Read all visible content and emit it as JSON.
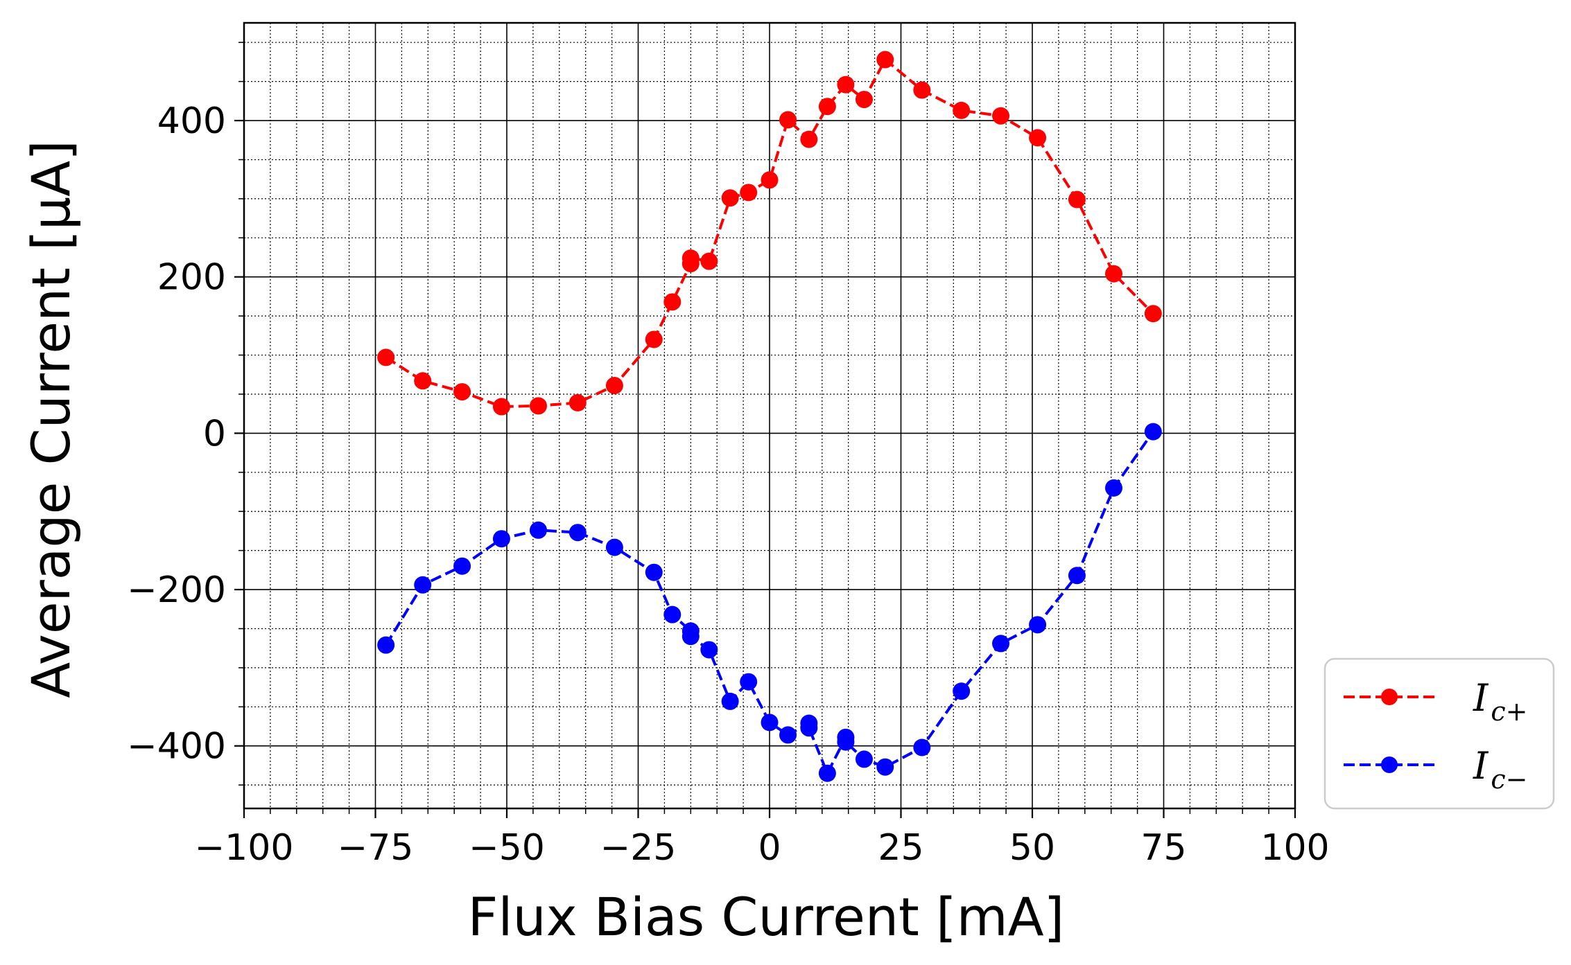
{
  "chart_data": {
    "type": "line",
    "title": "",
    "xlabel": "Flux Bias Current [mA]",
    "ylabel": "Average Current [μA]",
    "xlim": [
      -100,
      100
    ],
    "ylim": [
      -480,
      525
    ],
    "xticks": [
      -100,
      -75,
      -50,
      -25,
      0,
      25,
      50,
      75,
      100
    ],
    "yticks": [
      -400,
      -200,
      0,
      200,
      400
    ],
    "xtick_labels": [
      "−100",
      "−75",
      "−50",
      "−25",
      "0",
      "25",
      "50",
      "75",
      "100"
    ],
    "ytick_labels": [
      "−400",
      "−200",
      "0",
      "200",
      "400"
    ],
    "grid": true,
    "minor_grid": true,
    "legend_placement": "outside-bottom-right",
    "series": [
      {
        "name": "I_{c+}",
        "label_main": "I",
        "label_sub": "c+",
        "color": "#ff0000",
        "linestyle": "dashed",
        "marker": "circle",
        "x": [
          -73,
          -66,
          -58.5,
          -51,
          -44,
          -36.5,
          -29.5,
          -22,
          -18.5,
          -15,
          -15,
          -11.5,
          -7.5,
          -4,
          0,
          3.5,
          7.5,
          11,
          14.5,
          18,
          22,
          29,
          36.5,
          44,
          51,
          58.5,
          65.5,
          73
        ],
        "y": [
          97,
          67,
          53,
          34,
          35,
          39,
          61,
          120,
          168,
          217,
          224,
          220,
          301,
          308,
          324,
          401,
          376,
          418,
          446,
          427,
          478,
          439,
          413,
          406,
          378,
          299,
          204,
          153
        ]
      },
      {
        "name": "I_{c−}",
        "label_main": "I",
        "label_sub": "c−",
        "color": "#0000ff",
        "linestyle": "dashed",
        "marker": "circle",
        "x": [
          -73,
          -66,
          -58.5,
          -51,
          -44,
          -36.5,
          -29.5,
          -22,
          -18.5,
          -15,
          -15,
          -11.5,
          -7.5,
          -4,
          0,
          3.5,
          7.5,
          7.5,
          11,
          14.5,
          14.5,
          18,
          22,
          29,
          36.5,
          44,
          51,
          58.5,
          65.5,
          73
        ],
        "y": [
          -271,
          -194,
          -170,
          -135,
          -124,
          -127,
          -146,
          -178,
          -232,
          -253,
          -260,
          -277,
          -343,
          -318,
          -370,
          -386,
          -371,
          -377,
          -435,
          -389,
          -395,
          -417,
          -427,
          -402,
          -330,
          -269,
          -245,
          -182,
          -70,
          2
        ]
      }
    ]
  }
}
